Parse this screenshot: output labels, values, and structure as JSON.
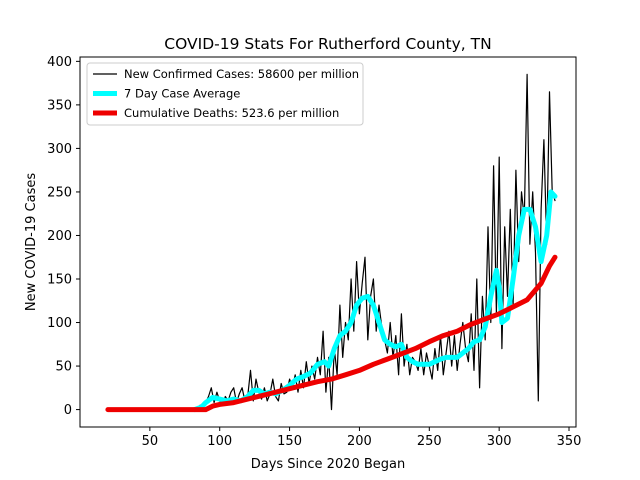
{
  "chart_data": {
    "type": "line",
    "title": "COVID-19 Stats For Rutherford County, TN",
    "xlabel": "Days Since 2020 Began",
    "ylabel": "New COVID-19 Cases",
    "xlim": [
      0,
      355
    ],
    "ylim": [
      -20,
      405
    ],
    "xticks": [
      50,
      100,
      150,
      200,
      250,
      300,
      350
    ],
    "yticks": [
      0,
      50,
      100,
      150,
      200,
      250,
      300,
      350,
      400
    ],
    "grid": false,
    "legend_position": "top-left",
    "series": [
      {
        "name": "New Confirmed Cases: 58600 per million",
        "color": "#000000",
        "style": "thin",
        "points": [
          [
            82,
            0
          ],
          [
            84,
            2
          ],
          [
            86,
            5
          ],
          [
            88,
            3
          ],
          [
            90,
            8
          ],
          [
            92,
            15
          ],
          [
            94,
            25
          ],
          [
            96,
            8
          ],
          [
            98,
            20
          ],
          [
            100,
            10
          ],
          [
            102,
            5
          ],
          [
            104,
            15
          ],
          [
            106,
            10
          ],
          [
            108,
            20
          ],
          [
            110,
            25
          ],
          [
            112,
            8
          ],
          [
            114,
            18
          ],
          [
            116,
            25
          ],
          [
            118,
            10
          ],
          [
            120,
            15
          ],
          [
            122,
            45
          ],
          [
            124,
            10
          ],
          [
            126,
            35
          ],
          [
            128,
            20
          ],
          [
            130,
            12
          ],
          [
            132,
            25
          ],
          [
            134,
            10
          ],
          [
            136,
            18
          ],
          [
            138,
            35
          ],
          [
            140,
            15
          ],
          [
            142,
            10
          ],
          [
            144,
            30
          ],
          [
            146,
            18
          ],
          [
            148,
            20
          ],
          [
            150,
            35
          ],
          [
            152,
            25
          ],
          [
            154,
            40
          ],
          [
            156,
            20
          ],
          [
            158,
            45
          ],
          [
            160,
            25
          ],
          [
            162,
            55
          ],
          [
            164,
            30
          ],
          [
            166,
            50
          ],
          [
            168,
            35
          ],
          [
            170,
            60
          ],
          [
            172,
            40
          ],
          [
            174,
            90
          ],
          [
            176,
            20
          ],
          [
            178,
            60
          ],
          [
            180,
            0
          ],
          [
            182,
            70
          ],
          [
            184,
            40
          ],
          [
            186,
            120
          ],
          [
            188,
            60
          ],
          [
            190,
            100
          ],
          [
            192,
            80
          ],
          [
            194,
            150
          ],
          [
            196,
            90
          ],
          [
            198,
            170
          ],
          [
            200,
            110
          ],
          [
            202,
            145
          ],
          [
            204,
            175
          ],
          [
            206,
            80
          ],
          [
            208,
            130
          ],
          [
            210,
            150
          ],
          [
            212,
            90
          ],
          [
            214,
            120
          ],
          [
            216,
            95
          ],
          [
            218,
            80
          ],
          [
            220,
            65
          ],
          [
            222,
            100
          ],
          [
            224,
            60
          ],
          [
            226,
            85
          ],
          [
            228,
            40
          ],
          [
            230,
            110
          ],
          [
            232,
            50
          ],
          [
            234,
            75
          ],
          [
            236,
            40
          ],
          [
            238,
            60
          ],
          [
            240,
            55
          ],
          [
            242,
            45
          ],
          [
            244,
            70
          ],
          [
            246,
            40
          ],
          [
            248,
            65
          ],
          [
            250,
            50
          ],
          [
            252,
            35
          ],
          [
            254,
            70
          ],
          [
            256,
            45
          ],
          [
            258,
            85
          ],
          [
            260,
            40
          ],
          [
            262,
            65
          ],
          [
            264,
            90
          ],
          [
            266,
            50
          ],
          [
            268,
            85
          ],
          [
            270,
            45
          ],
          [
            272,
            75
          ],
          [
            274,
            100
          ],
          [
            276,
            70
          ],
          [
            278,
            55
          ],
          [
            280,
            110
          ],
          [
            282,
            45
          ],
          [
            284,
            150
          ],
          [
            286,
            25
          ],
          [
            288,
            130
          ],
          [
            290,
            80
          ],
          [
            292,
            210
          ],
          [
            294,
            100
          ],
          [
            296,
            280
          ],
          [
            298,
            110
          ],
          [
            300,
            290
          ],
          [
            302,
            70
          ],
          [
            304,
            210
          ],
          [
            306,
            130
          ],
          [
            308,
            230
          ],
          [
            310,
            120
          ],
          [
            312,
            275
          ],
          [
            314,
            170
          ],
          [
            316,
            250
          ],
          [
            318,
            220
          ],
          [
            320,
            385
          ],
          [
            322,
            190
          ],
          [
            324,
            250
          ],
          [
            326,
            180
          ],
          [
            328,
            10
          ],
          [
            330,
            230
          ],
          [
            332,
            310
          ],
          [
            334,
            190
          ],
          [
            336,
            365
          ],
          [
            338,
            250
          ],
          [
            340,
            240
          ]
        ]
      },
      {
        "name": "7 Day Case Average",
        "color": "#00ffff",
        "style": "thick",
        "points": [
          [
            82,
            0
          ],
          [
            87,
            3
          ],
          [
            90,
            8
          ],
          [
            95,
            14
          ],
          [
            100,
            12
          ],
          [
            105,
            10
          ],
          [
            110,
            12
          ],
          [
            115,
            10
          ],
          [
            120,
            15
          ],
          [
            124,
            22
          ],
          [
            128,
            22
          ],
          [
            132,
            18
          ],
          [
            136,
            20
          ],
          [
            140,
            18
          ],
          [
            145,
            22
          ],
          [
            150,
            28
          ],
          [
            155,
            35
          ],
          [
            160,
            38
          ],
          [
            165,
            42
          ],
          [
            170,
            52
          ],
          [
            175,
            55
          ],
          [
            178,
            50
          ],
          [
            182,
            70
          ],
          [
            186,
            85
          ],
          [
            190,
            90
          ],
          [
            194,
            100
          ],
          [
            198,
            120
          ],
          [
            202,
            128
          ],
          [
            206,
            130
          ],
          [
            210,
            120
          ],
          [
            214,
            100
          ],
          [
            218,
            80
          ],
          [
            222,
            75
          ],
          [
            226,
            72
          ],
          [
            230,
            75
          ],
          [
            234,
            60
          ],
          [
            238,
            55
          ],
          [
            242,
            52
          ],
          [
            246,
            52
          ],
          [
            250,
            52
          ],
          [
            254,
            55
          ],
          [
            258,
            58
          ],
          [
            262,
            60
          ],
          [
            266,
            60
          ],
          [
            270,
            60
          ],
          [
            274,
            65
          ],
          [
            278,
            70
          ],
          [
            282,
            78
          ],
          [
            286,
            80
          ],
          [
            290,
            95
          ],
          [
            294,
            130
          ],
          [
            298,
            160
          ],
          [
            300,
            140
          ],
          [
            302,
            100
          ],
          [
            306,
            105
          ],
          [
            310,
            150
          ],
          [
            314,
            200
          ],
          [
            318,
            230
          ],
          [
            322,
            230
          ],
          [
            326,
            210
          ],
          [
            330,
            170
          ],
          [
            334,
            200
          ],
          [
            337,
            250
          ],
          [
            340,
            245
          ]
        ]
      },
      {
        "name": "Cumulative Deaths: 523.6 per million",
        "color": "#ee0000",
        "style": "thick",
        "points": [
          [
            20,
            0
          ],
          [
            90,
            0
          ],
          [
            95,
            4
          ],
          [
            100,
            6
          ],
          [
            110,
            8
          ],
          [
            120,
            12
          ],
          [
            130,
            16
          ],
          [
            140,
            20
          ],
          [
            150,
            24
          ],
          [
            160,
            28
          ],
          [
            170,
            32
          ],
          [
            180,
            35
          ],
          [
            190,
            40
          ],
          [
            200,
            45
          ],
          [
            210,
            52
          ],
          [
            220,
            58
          ],
          [
            230,
            64
          ],
          [
            240,
            70
          ],
          [
            250,
            78
          ],
          [
            260,
            85
          ],
          [
            270,
            90
          ],
          [
            280,
            98
          ],
          [
            290,
            104
          ],
          [
            300,
            110
          ],
          [
            310,
            118
          ],
          [
            320,
            126
          ],
          [
            330,
            145
          ],
          [
            336,
            165
          ],
          [
            340,
            175
          ]
        ]
      }
    ]
  }
}
